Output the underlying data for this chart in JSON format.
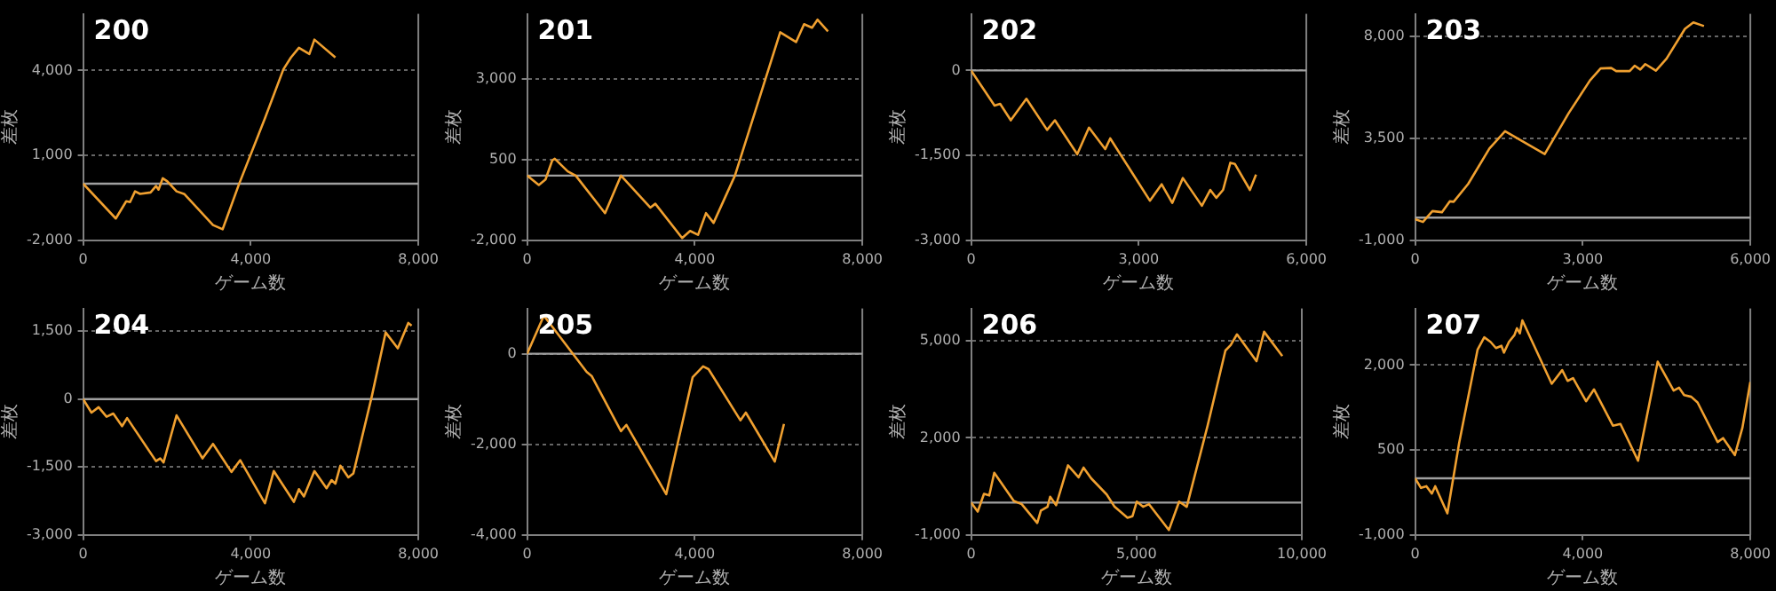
{
  "chart_data": [
    {
      "type": "line",
      "title": "200",
      "xlabel": "ゲーム数",
      "ylabel": "差枚",
      "x": [
        0,
        780,
        1030,
        1120,
        1240,
        1360,
        1610,
        1740,
        1800,
        1900,
        2010,
        2230,
        2420,
        3100,
        3330,
        3720,
        4340,
        4780,
        4960,
        5150,
        5400,
        5520,
        6020
      ],
      "series": [
        {
          "color": "#f0a030",
          "values": [
            0,
            -1230,
            -620,
            -650,
            -270,
            -360,
            -310,
            -80,
            -210,
            190,
            80,
            -270,
            -370,
            -1460,
            -1610,
            -20,
            2310,
            4040,
            4460,
            4800,
            4580,
            5090,
            4460
          ]
        }
      ],
      "xlim": [
        0,
        8000
      ],
      "xticks": [
        {
          "value": 0,
          "label": "0"
        },
        {
          "value": 4000,
          "label": "4,000"
        },
        {
          "value": 8000,
          "label": "8,000"
        }
      ],
      "ylim": [
        -2000,
        6000
      ],
      "yticks": [
        {
          "value": -2000,
          "label": "-2,000"
        },
        {
          "value": 1000,
          "label": "1,000"
        },
        {
          "value": 4000,
          "label": "4,000"
        }
      ],
      "grid": "y",
      "ref_lines": [
        {
          "axis": "y",
          "value": 0,
          "color": "#a0a0a0"
        }
      ]
    },
    {
      "type": "line",
      "title": "201",
      "xlabel": "ゲーム数",
      "ylabel": "差枚",
      "x": [
        0,
        280,
        440,
        600,
        660,
        970,
        1160,
        1860,
        2240,
        2940,
        3060,
        3700,
        3890,
        4080,
        4270,
        4450,
        4960,
        6040,
        6290,
        6420,
        6610,
        6800,
        6930,
        7180
      ],
      "series": [
        {
          "color": "#f0a030",
          "values": [
            0,
            -290,
            -120,
            470,
            520,
            130,
            0,
            -1160,
            0,
            -990,
            -870,
            -1930,
            -1710,
            -1830,
            -1160,
            -1460,
            0,
            4430,
            4230,
            4130,
            4680,
            4570,
            4820,
            4460
          ]
        }
      ],
      "xlim": [
        0,
        8000
      ],
      "xticks": [
        {
          "value": 0,
          "label": "0"
        },
        {
          "value": 4000,
          "label": "4,000"
        },
        {
          "value": 8000,
          "label": "8,000"
        }
      ],
      "ylim": [
        -2000,
        5000
      ],
      "yticks": [
        {
          "value": -2000,
          "label": "-2,000"
        },
        {
          "value": 500,
          "label": "500"
        },
        {
          "value": 3000,
          "label": "3,000"
        }
      ],
      "grid": "y",
      "ref_lines": [
        {
          "axis": "y",
          "value": 0,
          "color": "#a0a0a0"
        }
      ]
    },
    {
      "type": "line",
      "title": "202",
      "xlabel": "ゲーム数",
      "ylabel": "差枚",
      "x": [
        0,
        420,
        520,
        710,
        990,
        1360,
        1500,
        1900,
        2110,
        2400,
        2490,
        3200,
        3410,
        3600,
        3790,
        4130,
        4280,
        4390,
        4510,
        4640,
        4720,
        4990,
        5100
      ],
      "series": [
        {
          "color": "#f0a030",
          "values": [
            0,
            -620,
            -590,
            -880,
            -500,
            -1050,
            -880,
            -1480,
            -1010,
            -1390,
            -1200,
            -2300,
            -2010,
            -2340,
            -1900,
            -2390,
            -2110,
            -2250,
            -2110,
            -1630,
            -1650,
            -2110,
            -1840
          ]
        }
      ],
      "xlim": [
        0,
        6000
      ],
      "xticks": [
        {
          "value": 0,
          "label": "0"
        },
        {
          "value": 3000,
          "label": "3,000"
        },
        {
          "value": 6000,
          "label": "6,000"
        }
      ],
      "ylim": [
        -3000,
        1000
      ],
      "yticks": [
        {
          "value": -3000,
          "label": "-3,000"
        },
        {
          "value": -1500,
          "label": "-1,500"
        },
        {
          "value": 0,
          "label": "0"
        }
      ],
      "grid": "y",
      "ref_lines": [
        {
          "axis": "y",
          "value": 0,
          "color": "#a0a0a0"
        }
      ]
    },
    {
      "type": "line",
      "title": "203",
      "xlabel": "ゲーム数",
      "ylabel": "差枚",
      "x": [
        0,
        140,
        310,
        480,
        620,
        690,
        950,
        1330,
        1610,
        2320,
        2750,
        3130,
        3320,
        3510,
        3600,
        3840,
        3930,
        4030,
        4120,
        4310,
        4500,
        4830,
        4980,
        5170
      ],
      "series": [
        {
          "color": "#f0a030",
          "values": [
            -70,
            -190,
            290,
            240,
            720,
            700,
            1490,
            3050,
            3820,
            2810,
            4620,
            6060,
            6590,
            6610,
            6470,
            6470,
            6710,
            6540,
            6780,
            6490,
            7020,
            8340,
            8620,
            8460
          ]
        }
      ],
      "xlim": [
        0,
        6000
      ],
      "xticks": [
        {
          "value": 0,
          "label": "0"
        },
        {
          "value": 3000,
          "label": "3,000"
        },
        {
          "value": 6000,
          "label": "6,000"
        }
      ],
      "ylim": [
        -1000,
        9000
      ],
      "yticks": [
        {
          "value": -1000,
          "label": "-1,000"
        },
        {
          "value": 3500,
          "label": "3,500"
        },
        {
          "value": 8000,
          "label": "8,000"
        }
      ],
      "grid": "y",
      "ref_lines": [
        {
          "axis": "y",
          "value": 0,
          "color": "#a0a0a0"
        }
      ]
    },
    {
      "type": "line",
      "title": "204",
      "xlabel": "ゲーム数",
      "ylabel": "差枚",
      "x": [
        0,
        200,
        370,
        560,
        720,
        930,
        1050,
        1740,
        1840,
        1920,
        2230,
        2850,
        3100,
        3540,
        3750,
        4340,
        4550,
        5030,
        5150,
        5270,
        5520,
        5810,
        5930,
        6020,
        6140,
        6330,
        6450,
        6890,
        7220,
        7510,
        7760,
        7840
      ],
      "series": [
        {
          "color": "#f0a030",
          "values": [
            0,
            -300,
            -180,
            -390,
            -320,
            -600,
            -420,
            -1370,
            -1310,
            -1400,
            -360,
            -1310,
            -990,
            -1610,
            -1350,
            -2300,
            -1590,
            -2270,
            -1990,
            -2150,
            -1590,
            -1970,
            -1790,
            -1870,
            -1470,
            -1730,
            -1640,
            60,
            1470,
            1120,
            1680,
            1620
          ]
        }
      ],
      "xlim": [
        0,
        8000
      ],
      "xticks": [
        {
          "value": 0,
          "label": "0"
        },
        {
          "value": 4000,
          "label": "4,000"
        },
        {
          "value": 8000,
          "label": "8,000"
        }
      ],
      "ylim": [
        -3000,
        2000
      ],
      "yticks": [
        {
          "value": -3000,
          "label": "-3,000"
        },
        {
          "value": -1500,
          "label": "-1,500"
        },
        {
          "value": 0,
          "label": "0"
        },
        {
          "value": 1500,
          "label": "1,500"
        }
      ],
      "grid": "y",
      "ref_lines": [
        {
          "axis": "y",
          "value": 0,
          "color": "#a0a0a0"
        }
      ]
    },
    {
      "type": "line",
      "title": "205",
      "xlabel": "ゲーム数",
      "ylabel": "差枚",
      "x": [
        0,
        400,
        1420,
        1540,
        2240,
        2370,
        3320,
        3950,
        4200,
        4330,
        5090,
        5220,
        5910,
        6130
      ],
      "series": [
        {
          "color": "#f0a030",
          "values": [
            0,
            840,
            -400,
            -490,
            -1710,
            -1570,
            -3100,
            -520,
            -280,
            -340,
            -1470,
            -1300,
            -2380,
            -1550
          ]
        }
      ],
      "xlim": [
        0,
        8000
      ],
      "xticks": [
        {
          "value": 0,
          "label": "0"
        },
        {
          "value": 4000,
          "label": "4,000"
        },
        {
          "value": 8000,
          "label": "8,000"
        }
      ],
      "ylim": [
        -4000,
        1000
      ],
      "yticks": [
        {
          "value": -4000,
          "label": "-4,000"
        },
        {
          "value": -2000,
          "label": "-2,000"
        },
        {
          "value": 0,
          "label": "0"
        }
      ],
      "grid": "y",
      "ref_lines": [
        {
          "axis": "y",
          "value": 0,
          "color": "#a0a0a0"
        }
      ]
    },
    {
      "type": "line",
      "title": "206",
      "xlabel": "ゲーム数",
      "ylabel": "差枚",
      "x": [
        0,
        200,
        390,
        550,
        700,
        1290,
        1530,
        2000,
        2110,
        2310,
        2390,
        2570,
        2930,
        3250,
        3400,
        3630,
        4100,
        4340,
        4730,
        4880,
        5010,
        5200,
        5380,
        5980,
        6290,
        6520,
        7150,
        7690,
        7850,
        8040,
        8630,
        8860,
        9410
      ],
      "series": [
        {
          "color": "#f0a030",
          "values": [
            0,
            -280,
            270,
            220,
            920,
            50,
            -50,
            -630,
            -250,
            -130,
            180,
            -80,
            1150,
            780,
            1080,
            750,
            250,
            -130,
            -470,
            -420,
            30,
            -130,
            -50,
            -850,
            30,
            -130,
            2370,
            4700,
            4870,
            5200,
            4370,
            5280,
            4530
          ]
        }
      ],
      "xlim": [
        0,
        10000
      ],
      "xticks": [
        {
          "value": 0,
          "label": "0"
        },
        {
          "value": 5000,
          "label": "5,000"
        },
        {
          "value": 10000,
          "label": "10,000"
        }
      ],
      "ylim": [
        -1000,
        6000
      ],
      "yticks": [
        {
          "value": -1000,
          "label": "-1,000"
        },
        {
          "value": 2000,
          "label": "2,000"
        },
        {
          "value": 5000,
          "label": "5,000"
        }
      ],
      "grid": "y",
      "ref_lines": [
        {
          "axis": "y",
          "value": 0,
          "color": "#a0a0a0"
        }
      ]
    },
    {
      "type": "line",
      "title": "207",
      "xlabel": "ゲーム数",
      "ylabel": "差枚",
      "x": [
        0,
        140,
        270,
        400,
        480,
        770,
        1050,
        1490,
        1650,
        1800,
        1930,
        2060,
        2120,
        2240,
        2370,
        2430,
        2500,
        2560,
        3260,
        3510,
        3640,
        3770,
        4080,
        4270,
        4720,
        4900,
        5320,
        5790,
        6170,
        6300,
        6420,
        6590,
        6740,
        7220,
        7350,
        7630,
        7810,
        8000
      ],
      "series": [
        {
          "color": "#f0a030",
          "values": [
            0,
            -170,
            -140,
            -270,
            -140,
            -620,
            620,
            2270,
            2490,
            2410,
            2300,
            2340,
            2220,
            2410,
            2530,
            2650,
            2560,
            2790,
            1670,
            1910,
            1720,
            1770,
            1360,
            1570,
            930,
            960,
            310,
            2060,
            1550,
            1600,
            1470,
            1440,
            1340,
            640,
            710,
            410,
            890,
            1700
          ]
        }
      ],
      "xlim": [
        0,
        8000
      ],
      "xticks": [
        {
          "value": 0,
          "label": "0"
        },
        {
          "value": 4000,
          "label": "4,000"
        },
        {
          "value": 8000,
          "label": "8,000"
        }
      ],
      "ylim": [
        -1000,
        3000
      ],
      "yticks": [
        {
          "value": -1000,
          "label": "-1,000"
        },
        {
          "value": 500,
          "label": "500"
        },
        {
          "value": 2000,
          "label": "2,000"
        }
      ],
      "grid": "y",
      "ref_lines": [
        {
          "axis": "y",
          "value": 0,
          "color": "#a0a0a0"
        }
      ]
    }
  ]
}
